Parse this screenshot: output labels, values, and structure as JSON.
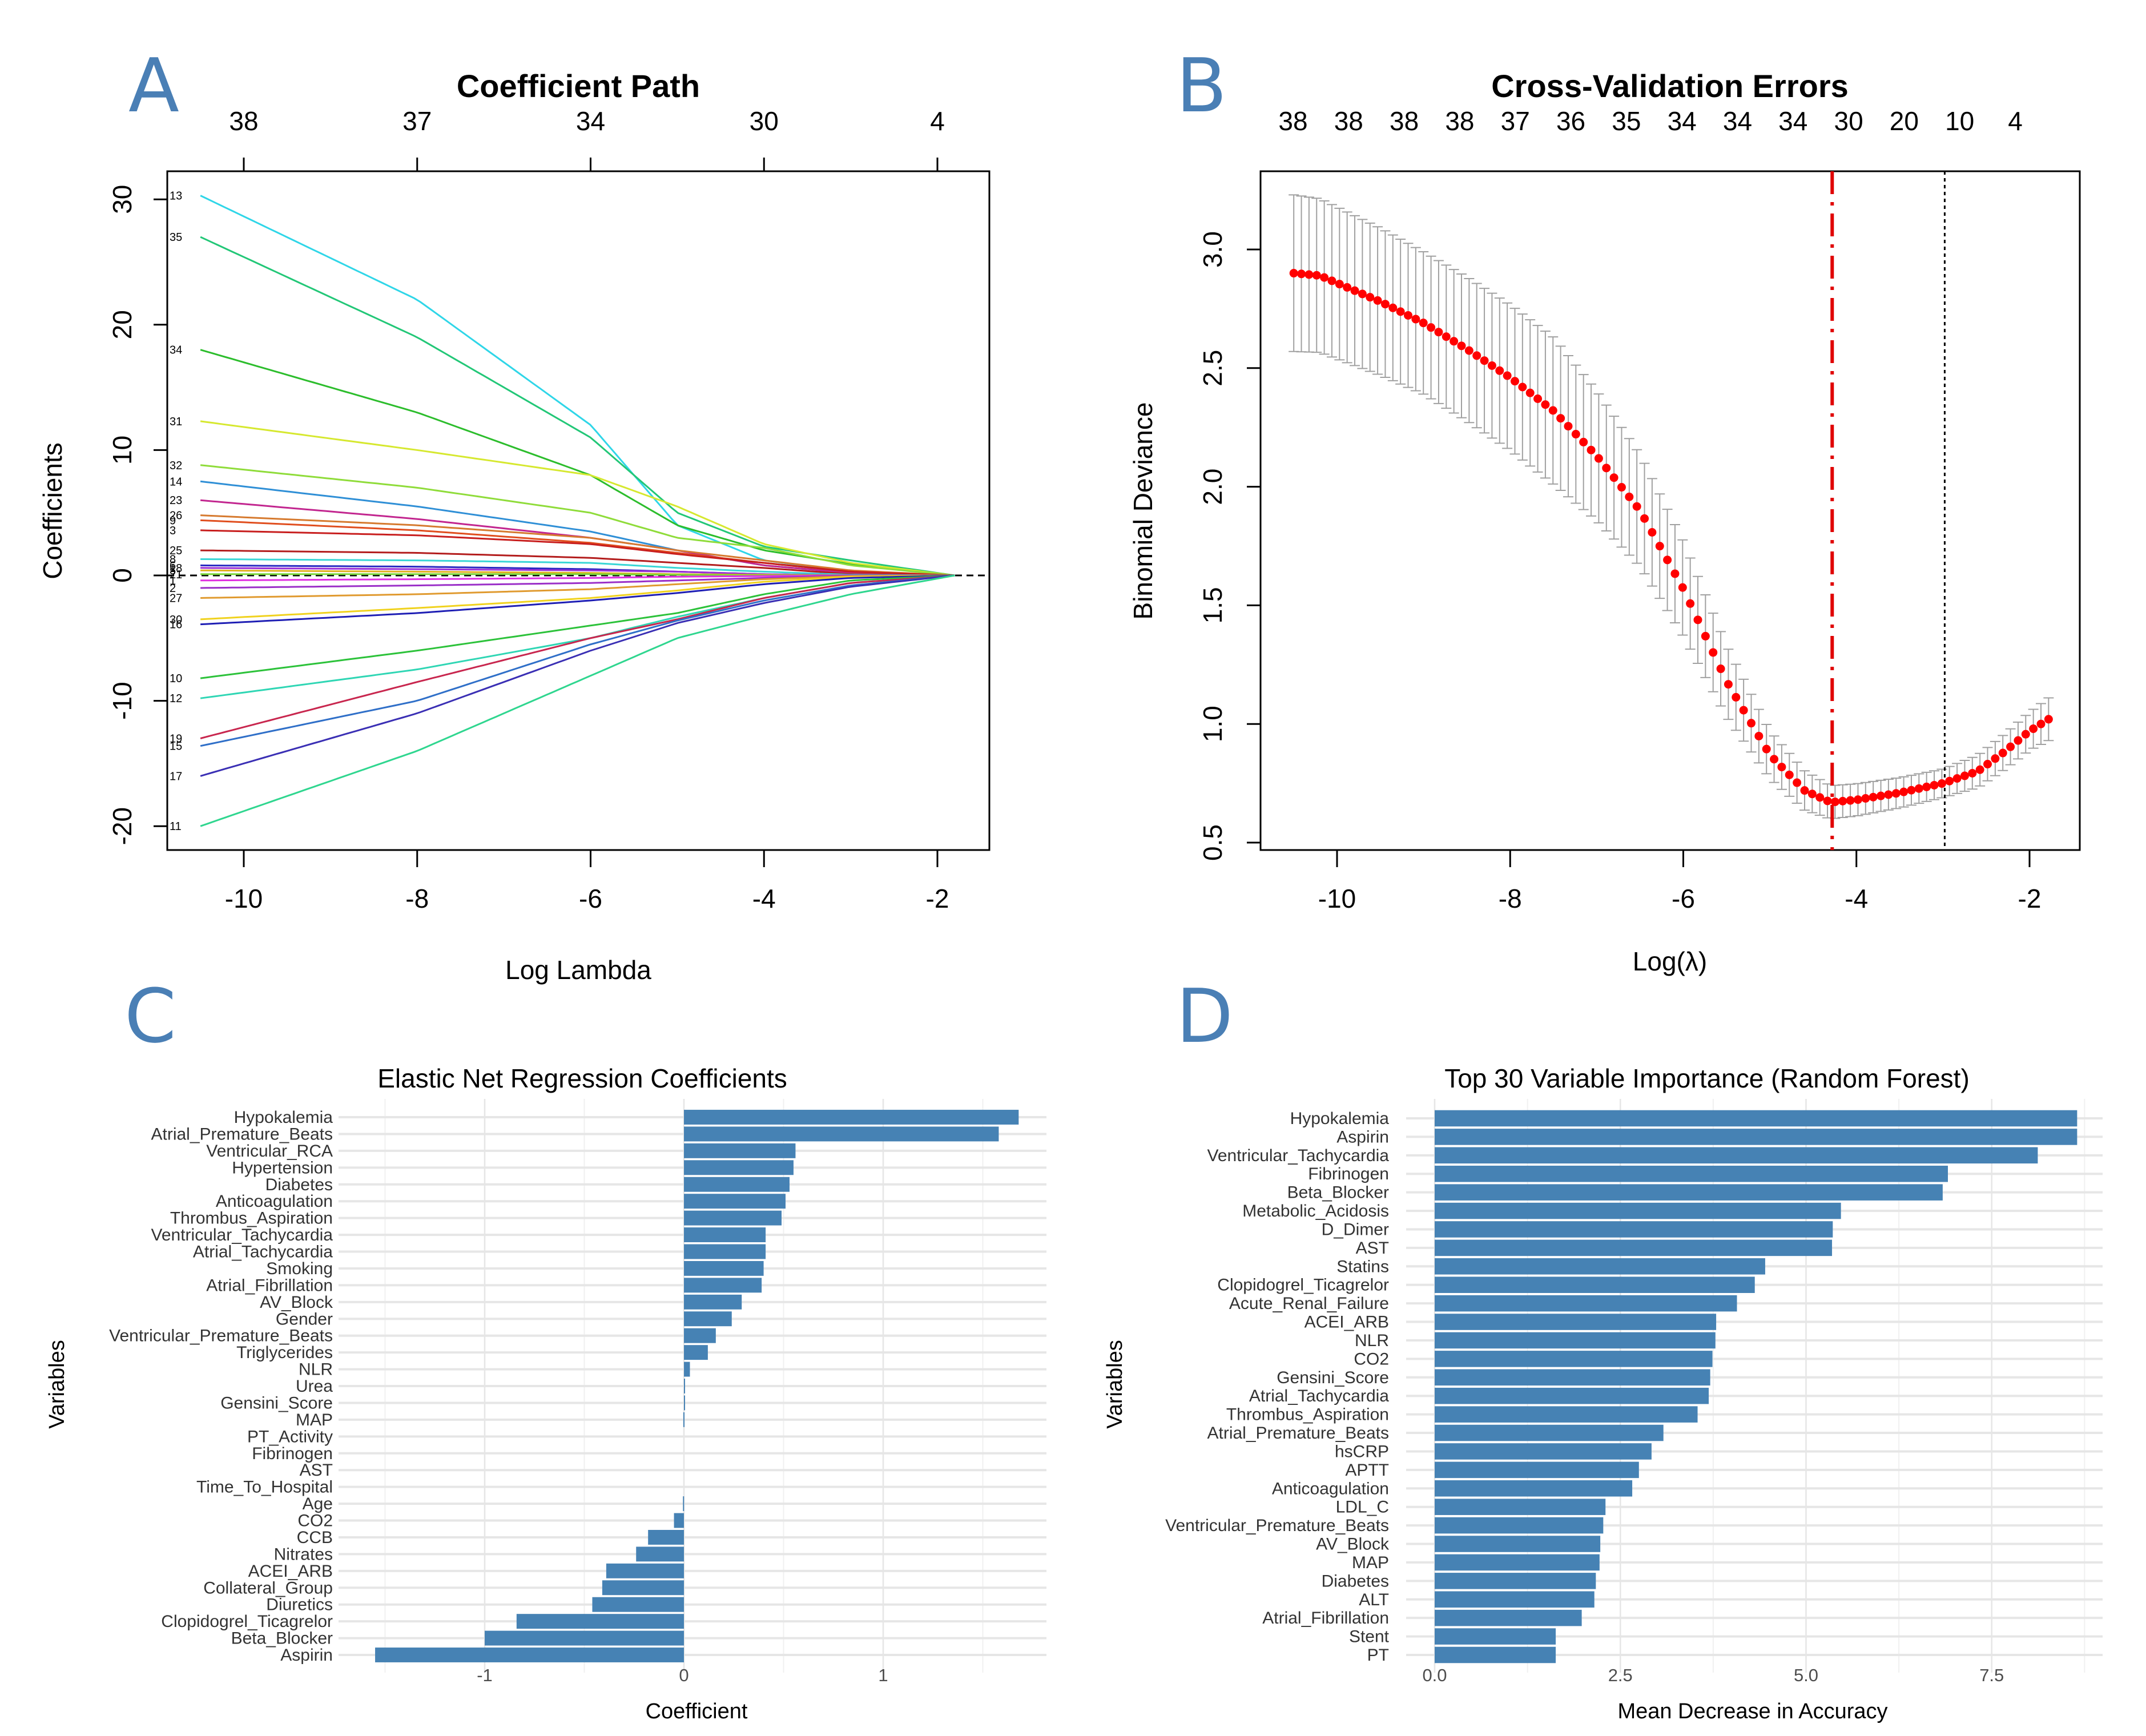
{
  "figure": {
    "panels": [
      "A",
      "B",
      "C",
      "D"
    ]
  },
  "chart_data": [
    {
      "id": "A",
      "type": "line",
      "panel_letter": "A",
      "title": "Coefficient Path",
      "xlabel": "Log Lambda",
      "ylabel": "Coefficients",
      "xlim": [
        -10.8,
        -1.4
      ],
      "ylim": [
        -22,
        31.5
      ],
      "x_ticks": [
        -10,
        -8,
        -6,
        -4,
        -2
      ],
      "y_ticks": [
        -20,
        -10,
        0,
        10,
        20,
        30
      ],
      "top_axis_ticks": [
        {
          "x": -10,
          "label": "38"
        },
        {
          "x": -8,
          "label": "37"
        },
        {
          "x": -6,
          "label": "34"
        },
        {
          "x": -4,
          "label": "30"
        },
        {
          "x": -2,
          "label": "4"
        }
      ],
      "zero_line": "dashed",
      "x_start": -10.5,
      "x_end": -1.8,
      "series": [
        {
          "name": "13",
          "color": "#2fd6e8",
          "start": 30.3,
          "mid": [
            [
              -8,
              22
            ],
            [
              -6,
              12
            ],
            [
              -5,
              4
            ],
            [
              -4,
              1.2
            ],
            [
              -3,
              0.3
            ]
          ]
        },
        {
          "name": "35",
          "color": "#22c777",
          "start": 27.0,
          "mid": [
            [
              -8,
              19
            ],
            [
              -6,
              11
            ],
            [
              -5,
              5
            ],
            [
              -4,
              2.3
            ],
            [
              -3,
              1.2
            ]
          ]
        },
        {
          "name": "34",
          "color": "#2cbd2c",
          "start": 18.0,
          "mid": [
            [
              -8,
              13
            ],
            [
              -6,
              8
            ],
            [
              -5,
              4
            ],
            [
              -4,
              2.0
            ],
            [
              -3,
              0.9
            ]
          ]
        },
        {
          "name": "31",
          "color": "#d6e82f",
          "start": 12.3,
          "mid": [
            [
              -8,
              10
            ],
            [
              -6,
              8
            ],
            [
              -5,
              5.5
            ],
            [
              -4,
              2.5
            ],
            [
              -3,
              1.0
            ]
          ]
        },
        {
          "name": "32",
          "color": "#8fdc3a",
          "start": 8.8,
          "mid": [
            [
              -8,
              7
            ],
            [
              -6,
              5
            ],
            [
              -5,
              3.0
            ],
            [
              -4,
              2.2
            ],
            [
              -3,
              0.8
            ]
          ]
        },
        {
          "name": "14",
          "color": "#2f8fd6",
          "start": 7.5,
          "mid": [
            [
              -8,
              5.5
            ],
            [
              -6,
              3.5
            ],
            [
              -5,
              2
            ],
            [
              -4,
              0.8
            ],
            [
              -3,
              0.2
            ]
          ]
        },
        {
          "name": "23",
          "color": "#c2268f",
          "start": 6.0,
          "mid": [
            [
              -8,
              4.5
            ],
            [
              -6,
              3
            ],
            [
              -5,
              2
            ],
            [
              -4,
              0.8
            ],
            [
              -3,
              0.2
            ]
          ]
        },
        {
          "name": "26",
          "color": "#d67a2f",
          "start": 4.8,
          "mid": [
            [
              -8,
              4
            ],
            [
              -6,
              3
            ],
            [
              -5,
              2
            ],
            [
              -4,
              1.2
            ],
            [
              -3,
              0.4
            ]
          ]
        },
        {
          "name": "9",
          "color": "#e04e1e",
          "start": 4.4,
          "mid": [
            [
              -8,
              3.6
            ],
            [
              -6,
              2.6
            ],
            [
              -5,
              1.8
            ],
            [
              -4,
              1.0
            ],
            [
              -3,
              0.3
            ]
          ]
        },
        {
          "name": "3",
          "color": "#c81e1e",
          "start": 3.6,
          "mid": [
            [
              -8,
              3.2
            ],
            [
              -6,
              2.5
            ],
            [
              -5,
              1.7
            ],
            [
              -4,
              1.0
            ],
            [
              -3,
              0.3
            ]
          ]
        },
        {
          "name": "25",
          "color": "#b31c1c",
          "start": 2.0,
          "mid": [
            [
              -8,
              1.8
            ],
            [
              -6,
              1.4
            ],
            [
              -5,
              1.0
            ],
            [
              -4,
              0.6
            ],
            [
              -3,
              0.1
            ]
          ]
        },
        {
          "name": "8",
          "color": "#3ad6d6",
          "start": 1.3,
          "mid": [
            [
              -8,
              1.2
            ],
            [
              -6,
              1.0
            ],
            [
              -5,
              0.6
            ],
            [
              -4,
              0.3
            ],
            [
              -3,
              0.05
            ]
          ]
        },
        {
          "name": "6",
          "color": "#2828c2",
          "start": 0.8,
          "mid": [
            [
              -8,
              0.7
            ],
            [
              -6,
              0.5
            ],
            [
              -5,
              0.3
            ],
            [
              -4,
              0.1
            ],
            [
              -3,
              0
            ]
          ]
        },
        {
          "name": "18",
          "color": "#9b2fd6",
          "start": 0.6,
          "mid": [
            [
              -8,
              0.5
            ],
            [
              -6,
              0.4
            ],
            [
              -5,
              0.3
            ],
            [
              -4,
              0.1
            ],
            [
              -3,
              0
            ]
          ]
        },
        {
          "name": "5",
          "color": "#e0b020",
          "start": 0.4,
          "mid": [
            [
              -8,
              0.3
            ],
            [
              -6,
              0.2
            ],
            [
              -5,
              0.1
            ],
            [
              -4,
              0.05
            ],
            [
              -3,
              0
            ]
          ]
        },
        {
          "name": "21",
          "color": "#7ad63a",
          "start": 0.1,
          "mid": [
            [
              -8,
              0.1
            ],
            [
              -6,
              0.1
            ],
            [
              -5,
              0.05
            ],
            [
              -4,
              0
            ],
            [
              -3,
              0
            ]
          ]
        },
        {
          "name": "1",
          "color": "#e02fe0",
          "start": -0.4,
          "mid": [
            [
              -8,
              -0.3
            ],
            [
              -6,
              -0.2
            ],
            [
              -5,
              -0.1
            ],
            [
              -4,
              -0.05
            ],
            [
              -3,
              0
            ]
          ]
        },
        {
          "name": "2",
          "color": "#9b2fc8",
          "start": -1.0,
          "mid": [
            [
              -8,
              -0.8
            ],
            [
              -6,
              -0.6
            ],
            [
              -5,
              -0.4
            ],
            [
              -4,
              -0.2
            ],
            [
              -3,
              0
            ]
          ]
        },
        {
          "name": "27",
          "color": "#e09a2f",
          "start": -1.8,
          "mid": [
            [
              -8,
              -1.5
            ],
            [
              -6,
              -1.1
            ],
            [
              -5,
              -0.7
            ],
            [
              -4,
              -0.3
            ],
            [
              -3,
              -0.05
            ]
          ]
        },
        {
          "name": "30",
          "color": "#f0d21e",
          "start": -3.5,
          "mid": [
            [
              -8,
              -2.6
            ],
            [
              -6,
              -1.8
            ],
            [
              -5,
              -1.2
            ],
            [
              -4,
              -0.5
            ],
            [
              -3,
              -0.1
            ]
          ]
        },
        {
          "name": "16",
          "color": "#1e1eb4",
          "start": -3.9,
          "mid": [
            [
              -8,
              -3.0
            ],
            [
              -6,
              -2.0
            ],
            [
              -5,
              -1.4
            ],
            [
              -4,
              -0.7
            ],
            [
              -3,
              -0.2
            ]
          ]
        },
        {
          "name": "10",
          "color": "#2cc23a",
          "start": -8.2,
          "mid": [
            [
              -8,
              -6
            ],
            [
              -6,
              -4
            ],
            [
              -5,
              -3
            ],
            [
              -4,
              -1.5
            ],
            [
              -3,
              -0.4
            ]
          ]
        },
        {
          "name": "12",
          "color": "#2fd6b4",
          "start": -9.8,
          "mid": [
            [
              -8,
              -7.5
            ],
            [
              -6,
              -5
            ],
            [
              -5,
              -3.3
            ],
            [
              -4,
              -1.8
            ],
            [
              -3,
              -0.6
            ]
          ]
        },
        {
          "name": "19",
          "color": "#c8264e",
          "start": -13.0,
          "mid": [
            [
              -8,
              -8.5
            ],
            [
              -6,
              -5
            ],
            [
              -5,
              -3.5
            ],
            [
              -4,
              -1.8
            ],
            [
              -3,
              -0.6
            ]
          ]
        },
        {
          "name": "15",
          "color": "#2f6fc8",
          "start": -13.6,
          "mid": [
            [
              -8,
              -10
            ],
            [
              -6,
              -5.5
            ],
            [
              -5,
              -3.6
            ],
            [
              -4,
              -2.0
            ],
            [
              -3,
              -0.8
            ]
          ]
        },
        {
          "name": "17",
          "color": "#3a2fb4",
          "start": -16.0,
          "mid": [
            [
              -8,
              -11
            ],
            [
              -6,
              -6
            ],
            [
              -5,
              -3.8
            ],
            [
              -4,
              -2.2
            ],
            [
              -3,
              -0.9
            ]
          ]
        },
        {
          "name": "11",
          "color": "#2fd68f",
          "start": -20.0,
          "mid": [
            [
              -8,
              -14
            ],
            [
              -6,
              -8
            ],
            [
              -5,
              -5
            ],
            [
              -4,
              -3.2
            ],
            [
              -3,
              -1.5
            ]
          ]
        }
      ]
    },
    {
      "id": "B",
      "type": "scatter",
      "panel_letter": "B",
      "title": "Cross-Validation Errors",
      "xlabel": "Log(λ)",
      "ylabel": "Binomial Deviance",
      "xlim": [
        -10.8,
        -1.5
      ],
      "ylim": [
        0.45,
        3.35
      ],
      "x_ticks": [
        -10,
        -8,
        -6,
        -4,
        -2
      ],
      "y_ticks": [
        0.5,
        1.0,
        1.5,
        2.0,
        2.5,
        3.0
      ],
      "top_axis_labels": [
        "38",
        "38",
        "38",
        "38",
        "37",
        "36",
        "35",
        "34",
        "34",
        "34",
        "30",
        "20",
        "10",
        "4"
      ],
      "lambda_min_log": -4.28,
      "lambda_1se_log": -2.98,
      "point_color": "#ff0000",
      "errorbar_color": "#a0a0a0",
      "points": {
        "x_start": -10.5,
        "x_end": -1.78,
        "count": 100,
        "key_values": [
          [
            -10.5,
            2.9
          ],
          [
            -10.2,
            2.89
          ],
          [
            -9.5,
            2.78
          ],
          [
            -9.0,
            2.69
          ],
          [
            -8.5,
            2.58
          ],
          [
            -8.0,
            2.46
          ],
          [
            -7.5,
            2.32
          ],
          [
            -7.0,
            2.13
          ],
          [
            -6.5,
            1.9
          ],
          [
            -6.0,
            1.57
          ],
          [
            -5.5,
            1.18
          ],
          [
            -5.0,
            0.87
          ],
          [
            -4.6,
            0.72
          ],
          [
            -4.3,
            0.67
          ],
          [
            -4.0,
            0.68
          ],
          [
            -3.5,
            0.71
          ],
          [
            -3.0,
            0.75
          ],
          [
            -2.6,
            0.8
          ],
          [
            -2.3,
            0.88
          ],
          [
            -2.0,
            0.97
          ],
          [
            -1.78,
            1.02
          ]
        ],
        "se_key_values": [
          [
            -10.5,
            0.33
          ],
          [
            -9.0,
            0.3
          ],
          [
            -7.5,
            0.31
          ],
          [
            -6.0,
            0.2
          ],
          [
            -5.0,
            0.1
          ],
          [
            -4.3,
            0.07
          ],
          [
            -3.0,
            0.06
          ],
          [
            -2.0,
            0.08
          ],
          [
            -1.78,
            0.09
          ]
        ]
      }
    },
    {
      "id": "C",
      "type": "bar",
      "panel_letter": "C",
      "title": "Elastic Net Regression Coefficients",
      "xlabel": "Coefficient",
      "ylabel": "Variables",
      "xlim": [
        -1.65,
        1.8
      ],
      "x_ticks": [
        -1,
        0,
        1
      ],
      "bar_color": "#4682b4",
      "categories": [
        "Hypokalemia",
        "Atrial_Premature_Beats",
        "Ventricular_RCA",
        "Hypertension",
        "Diabetes",
        "Anticoagulation",
        "Thrombus_Aspiration",
        "Ventricular_Tachycardia",
        "Atrial_Tachycardia",
        "Smoking",
        "Atrial_Fibrillation",
        "AV_Block",
        "Gender",
        "Ventricular_Premature_Beats",
        "Triglycerides",
        "NLR",
        "Urea",
        "Gensini_Score",
        "MAP",
        "PT_Activity",
        "Fibrinogen",
        "AST",
        "Time_To_Hospital",
        "Age",
        "CO2",
        "CCB",
        "Nitrates",
        "ACEI_ARB",
        "Collateral_Group",
        "Diuretics",
        "Clopidogrel_Ticagrelor",
        "Beta_Blocker",
        "Aspirin"
      ],
      "values": [
        1.68,
        1.58,
        0.56,
        0.55,
        0.53,
        0.51,
        0.49,
        0.41,
        0.41,
        0.4,
        0.39,
        0.29,
        0.24,
        0.16,
        0.12,
        0.03,
        0.005,
        0.003,
        -0.003,
        0,
        0,
        0,
        0,
        -0.005,
        -0.05,
        -0.18,
        -0.24,
        -0.39,
        -0.41,
        -0.46,
        -0.84,
        -1.0,
        -1.55
      ]
    },
    {
      "id": "D",
      "type": "bar",
      "panel_letter": "D",
      "title": "Top 30 Variable Importance (Random Forest)",
      "xlabel": "Mean Decrease in Accuracy",
      "ylabel": "Variables",
      "xlim": [
        0,
        9.05
      ],
      "x_ticks": [
        0.0,
        2.5,
        5.0,
        7.5
      ],
      "x_tick_labels": [
        "0.0",
        "2.5",
        "5.0",
        "7.5"
      ],
      "bar_color": "#4682b4",
      "categories": [
        "Hypokalemia",
        "Aspirin",
        "Ventricular_Tachycardia",
        "Fibrinogen",
        "Beta_Blocker",
        "Metabolic_Acidosis",
        "D_Dimer",
        "AST",
        "Statins",
        "Clopidogrel_Ticagrelor",
        "Acute_Renal_Failure",
        "ACEI_ARB",
        "NLR",
        "CO2",
        "Gensini_Score",
        "Atrial_Tachycardia",
        "Thrombus_Aspiration",
        "Atrial_Premature_Beats",
        "hsCRP",
        "APTT",
        "Anticoagulation",
        "LDL_C",
        "Ventricular_Premature_Beats",
        "AV_Block",
        "MAP",
        "Diabetes",
        "ALT",
        "Atrial_Fibrillation",
        "Stent",
        "PT"
      ],
      "values": [
        8.65,
        8.65,
        8.12,
        6.91,
        6.84,
        5.47,
        5.36,
        5.35,
        4.45,
        4.31,
        4.07,
        3.79,
        3.78,
        3.74,
        3.71,
        3.69,
        3.54,
        3.08,
        2.92,
        2.75,
        2.66,
        2.3,
        2.27,
        2.23,
        2.22,
        2.17,
        2.15,
        1.98,
        1.63,
        1.63
      ]
    }
  ]
}
